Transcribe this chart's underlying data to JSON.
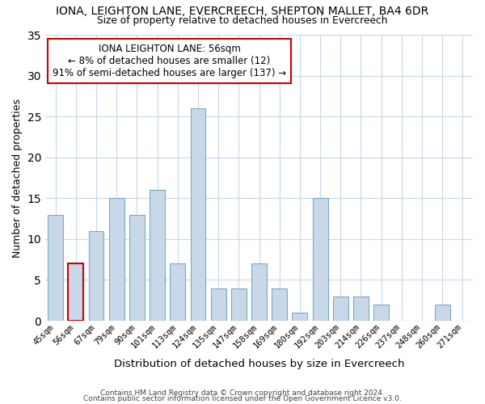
{
  "title": "IONA, LEIGHTON LANE, EVERCREECH, SHEPTON MALLET, BA4 6DR",
  "subtitle": "Size of property relative to detached houses in Evercreech",
  "xlabel": "Distribution of detached houses by size in Evercreech",
  "ylabel": "Number of detached properties",
  "categories": [
    "45sqm",
    "56sqm",
    "67sqm",
    "79sqm",
    "90sqm",
    "101sqm",
    "113sqm",
    "124sqm",
    "135sqm",
    "147sqm",
    "158sqm",
    "169sqm",
    "180sqm",
    "192sqm",
    "203sqm",
    "214sqm",
    "226sqm",
    "237sqm",
    "248sqm",
    "260sqm",
    "271sqm"
  ],
  "values": [
    13,
    7,
    11,
    15,
    13,
    16,
    7,
    26,
    4,
    4,
    7,
    4,
    1,
    15,
    3,
    3,
    2,
    0,
    0,
    2,
    0
  ],
  "bar_color": "#c8d8e8",
  "bar_edge_color": "#7aaac8",
  "highlight_bar_index": 1,
  "highlight_edge_color": "#cc0000",
  "annotation_title": "IONA LEIGHTON LANE: 56sqm",
  "annotation_line1": "← 8% of detached houses are smaller (12)",
  "annotation_line2": "91% of semi-detached houses are larger (137) →",
  "annotation_box_edge": "#cc0000",
  "annotation_box_face": "#ffffff",
  "ylim": [
    0,
    35
  ],
  "yticks": [
    0,
    5,
    10,
    15,
    20,
    25,
    30,
    35
  ],
  "footer1": "Contains HM Land Registry data © Crown copyright and database right 2024.",
  "footer2": "Contains public sector information licensed under the Open Government Licence v3.0.",
  "bg_color": "#ffffff",
  "grid_color": "#c8d8e8"
}
